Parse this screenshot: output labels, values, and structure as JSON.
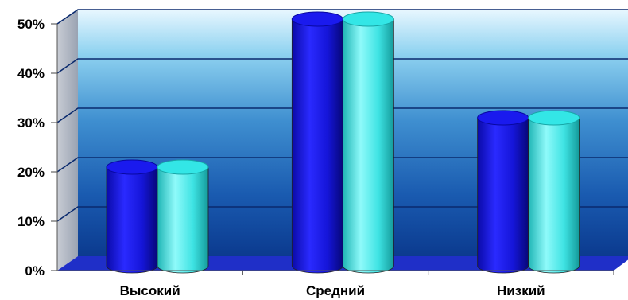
{
  "chart_data": {
    "type": "bar",
    "categories": [
      "Высокий",
      "Средний",
      "Низкий"
    ],
    "series": [
      {
        "values": [
          20,
          50,
          30
        ]
      },
      {
        "values": [
          20,
          50,
          30
        ]
      }
    ],
    "y_ticks": [
      "0%",
      "10%",
      "20%",
      "30%",
      "40%",
      "50%"
    ],
    "ylim": [
      0,
      50
    ],
    "grid": true,
    "legend": "none",
    "colors": {
      "series_1": "#1a1aee",
      "series_2": "#33e6e6",
      "background_top": "#dff3ff",
      "background_bottom": "#0b3a8f",
      "floor": "#1f2fc8",
      "gridline": "#0a2a6e"
    }
  }
}
